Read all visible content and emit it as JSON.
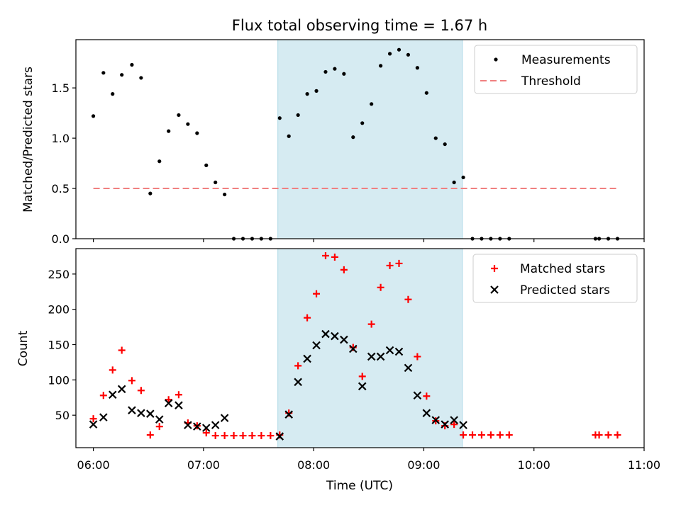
{
  "chart_data": {
    "type": "scatter",
    "title": "Flux total observing time = 1.67 h",
    "xlabel": "Time (UTC)",
    "x_ticks": [
      "06:00",
      "07:00",
      "08:00",
      "09:00",
      "10:00",
      "11:00"
    ],
    "x_tick_values": [
      0,
      60,
      120,
      180,
      240,
      300
    ],
    "xlim": [
      -9.5,
      300
    ],
    "shaded_span": {
      "start": 100.5,
      "end": 201,
      "color": "#add8e6"
    },
    "colors": {
      "measurements": "#000000",
      "threshold": "#f08080",
      "matched": "#ff0000",
      "predicted": "#000000",
      "span": "#add8e6"
    },
    "top": {
      "ylabel": "Matched/Predicted stars",
      "ylim": [
        0,
        1.98
      ],
      "y_ticks": [
        0.0,
        0.5,
        1.0,
        1.5
      ],
      "y_tick_labels": [
        "0.0",
        "0.5",
        "1.0",
        "1.5"
      ],
      "legend": [
        "Measurements",
        "Threshold"
      ],
      "legend_position": "top-right",
      "threshold": {
        "value": 0.5,
        "x_start": 0,
        "x_end": 285
      },
      "measurements": [
        [
          0,
          1.22
        ],
        [
          5.5,
          1.65
        ],
        [
          10.5,
          1.44
        ],
        [
          15.5,
          1.63
        ],
        [
          21,
          1.73
        ],
        [
          26,
          1.6
        ],
        [
          31,
          0.45
        ],
        [
          36,
          0.77
        ],
        [
          41,
          1.07
        ],
        [
          46.5,
          1.23
        ],
        [
          51.5,
          1.14
        ],
        [
          56.5,
          1.05
        ],
        [
          61.5,
          0.73
        ],
        [
          66.5,
          0.56
        ],
        [
          71.5,
          0.44
        ],
        [
          76.5,
          0.0
        ],
        [
          81.5,
          0.0
        ],
        [
          86.5,
          0.0
        ],
        [
          91.5,
          0.0
        ],
        [
          96.5,
          0.0
        ],
        [
          101.5,
          1.2
        ],
        [
          106.5,
          1.02
        ],
        [
          111.5,
          1.23
        ],
        [
          116.5,
          1.44
        ],
        [
          121.5,
          1.47
        ],
        [
          126.5,
          1.66
        ],
        [
          131.5,
          1.69
        ],
        [
          136.5,
          1.64
        ],
        [
          141.5,
          1.01
        ],
        [
          146.5,
          1.15
        ],
        [
          151.5,
          1.34
        ],
        [
          156.5,
          1.72
        ],
        [
          161.5,
          1.84
        ],
        [
          166.5,
          1.88
        ],
        [
          171.5,
          1.83
        ],
        [
          176.5,
          1.7
        ],
        [
          181.5,
          1.45
        ],
        [
          186.5,
          1.0
        ],
        [
          191.5,
          0.94
        ],
        [
          196.5,
          0.56
        ],
        [
          201.5,
          0.61
        ],
        [
          206.5,
          0.0
        ],
        [
          211.5,
          0.0
        ],
        [
          216.5,
          0.0
        ],
        [
          221.5,
          0.0
        ],
        [
          226.5,
          0.0
        ],
        [
          273.5,
          0.0
        ],
        [
          275.5,
          0.0
        ],
        [
          280.5,
          0.0
        ],
        [
          285.5,
          0.0
        ]
      ]
    },
    "bottom": {
      "ylabel": "Count",
      "ylim": [
        4,
        286
      ],
      "y_ticks": [
        50,
        100,
        150,
        200,
        250
      ],
      "y_tick_labels": [
        "50",
        "100",
        "150",
        "200",
        "250"
      ],
      "legend": [
        "Matched stars",
        "Predicted stars"
      ],
      "legend_position": "top-right",
      "matched": [
        [
          0,
          45
        ],
        [
          5.5,
          78
        ],
        [
          10.5,
          114
        ],
        [
          15.5,
          142
        ],
        [
          21,
          99
        ],
        [
          26,
          85
        ],
        [
          31,
          22
        ],
        [
          36,
          34
        ],
        [
          41,
          72
        ],
        [
          46.5,
          79
        ],
        [
          51.5,
          39
        ],
        [
          56.5,
          35
        ],
        [
          61.5,
          25
        ],
        [
          66.5,
          21
        ],
        [
          71.5,
          21
        ],
        [
          76.5,
          21
        ],
        [
          81.5,
          21
        ],
        [
          86.5,
          21
        ],
        [
          91.5,
          21
        ],
        [
          96.5,
          21
        ],
        [
          101.5,
          22
        ],
        [
          106.5,
          53
        ],
        [
          111.5,
          120
        ],
        [
          116.5,
          188
        ],
        [
          121.5,
          222
        ],
        [
          126.5,
          276
        ],
        [
          131.5,
          274
        ],
        [
          136.5,
          256
        ],
        [
          141.5,
          146
        ],
        [
          146.5,
          105
        ],
        [
          151.5,
          179
        ],
        [
          156.5,
          231
        ],
        [
          161.5,
          262
        ],
        [
          166.5,
          265
        ],
        [
          171.5,
          214
        ],
        [
          176.5,
          133
        ],
        [
          181.5,
          77
        ],
        [
          186.5,
          42
        ],
        [
          191.5,
          35
        ],
        [
          196.5,
          37
        ],
        [
          201.5,
          22
        ],
        [
          206.5,
          22
        ],
        [
          211.5,
          22
        ],
        [
          216.5,
          22
        ],
        [
          221.5,
          22
        ],
        [
          226.5,
          22
        ],
        [
          273.5,
          22
        ],
        [
          275.5,
          22
        ],
        [
          280.5,
          22
        ],
        [
          285.5,
          22
        ]
      ],
      "predicted": [
        [
          0,
          37
        ],
        [
          5.5,
          47
        ],
        [
          10.5,
          79
        ],
        [
          15.5,
          87
        ],
        [
          21,
          57
        ],
        [
          26,
          53
        ],
        [
          31,
          52
        ],
        [
          36,
          44
        ],
        [
          41,
          67
        ],
        [
          46.5,
          64
        ],
        [
          51.5,
          36
        ],
        [
          56.5,
          34
        ],
        [
          61.5,
          32
        ],
        [
          66.5,
          36
        ],
        [
          71.5,
          46
        ],
        [
          101.5,
          20
        ],
        [
          106.5,
          51
        ],
        [
          111.5,
          97
        ],
        [
          116.5,
          130
        ],
        [
          121.5,
          149
        ],
        [
          126.5,
          165
        ],
        [
          131.5,
          162
        ],
        [
          136.5,
          157
        ],
        [
          141.5,
          144
        ],
        [
          146.5,
          91
        ],
        [
          151.5,
          133
        ],
        [
          156.5,
          133
        ],
        [
          161.5,
          142
        ],
        [
          166.5,
          140
        ],
        [
          171.5,
          117
        ],
        [
          176.5,
          78
        ],
        [
          181.5,
          53
        ],
        [
          186.5,
          43
        ],
        [
          191.5,
          37
        ],
        [
          196.5,
          43
        ],
        [
          201.5,
          36
        ]
      ]
    }
  }
}
